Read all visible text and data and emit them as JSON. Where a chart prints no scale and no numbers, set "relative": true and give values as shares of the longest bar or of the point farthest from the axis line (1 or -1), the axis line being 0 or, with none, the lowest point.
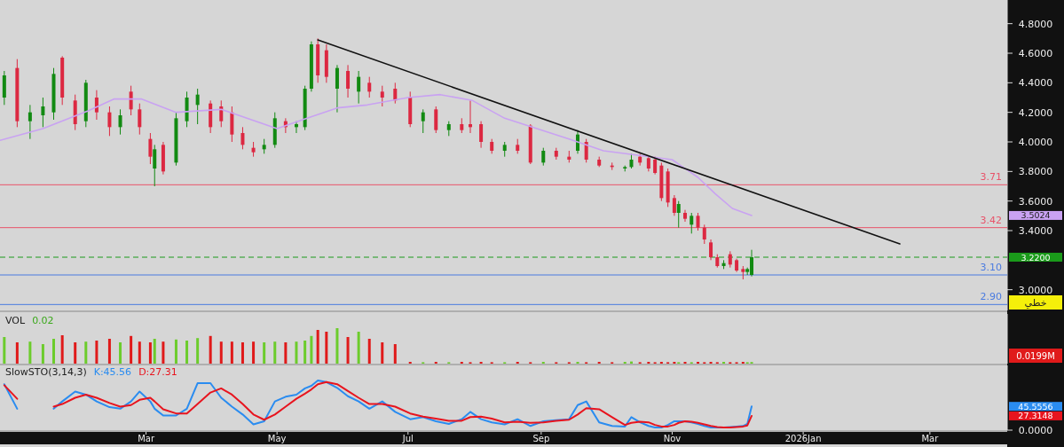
{
  "chart_data": [
    {
      "type": "candlestick",
      "tick_labels": "y",
      "xlim": [
        "2024-12-23",
        "2026-04-06"
      ],
      "ylim": [
        2.86,
        4.96
      ],
      "yticks": [
        {
          "value": 3.0,
          "label": "3.0000"
        },
        {
          "value": 3.4,
          "label": "3.4000"
        },
        {
          "value": 3.5024,
          "label": "3.5024"
        },
        {
          "value": 3.6,
          "label": "3.6000"
        },
        {
          "value": 3.8,
          "label": "3.8000"
        },
        {
          "value": 4.0,
          "label": "4.0000"
        },
        {
          "value": 4.2,
          "label": "4.2000"
        },
        {
          "value": 4.4,
          "label": "4.4000"
        },
        {
          "value": 4.6,
          "label": "4.6000"
        },
        {
          "value": 4.8,
          "label": "4.8000"
        }
      ],
      "x": [
        "2024-12-25",
        "2024-12-31",
        "2025-01-06",
        "2025-01-12",
        "2025-01-17",
        "2025-01-21",
        "2025-01-27",
        "2025-02-01",
        "2025-02-06",
        "2025-02-12",
        "2025-02-17",
        "2025-02-22",
        "2025-02-26",
        "2025-03-03",
        "2025-03-05",
        "2025-03-09",
        "2025-03-15",
        "2025-03-20",
        "2025-03-25",
        "2025-03-31",
        "2025-04-05",
        "2025-04-10",
        "2025-04-15",
        "2025-04-20",
        "2025-04-25",
        "2025-04-30",
        "2025-05-05",
        "2025-05-10",
        "2025-05-14",
        "2025-05-17",
        "2025-05-20",
        "2025-05-24",
        "2025-05-29",
        "2025-06-03",
        "2025-06-08",
        "2025-06-13",
        "2025-06-19",
        "2025-06-25",
        "2025-07-02",
        "2025-07-08",
        "2025-07-14",
        "2025-07-20",
        "2025-07-26",
        "2025-07-30",
        "2025-08-04",
        "2025-08-09",
        "2025-08-15",
        "2025-08-21",
        "2025-08-27",
        "2025-09-02",
        "2025-09-08",
        "2025-09-14",
        "2025-09-18",
        "2025-09-22",
        "2025-09-28",
        "2025-10-04",
        "2025-10-10",
        "2025-10-13",
        "2025-10-17",
        "2025-10-21",
        "2025-10-24",
        "2025-10-27",
        "2025-10-30",
        "2025-11-02",
        "2025-11-04",
        "2025-11-07",
        "2025-11-10",
        "2025-11-13",
        "2025-11-16",
        "2025-11-19",
        "2025-11-22",
        "2025-11-25",
        "2025-11-28",
        "2025-12-01",
        "2025-12-04",
        "2025-12-06",
        "2025-12-08"
      ],
      "ohlc": [
        [
          4.3,
          4.48,
          4.25,
          4.45
        ],
        [
          4.5,
          4.56,
          4.1,
          4.14
        ],
        [
          4.14,
          4.25,
          4.02,
          4.2
        ],
        [
          4.18,
          4.3,
          4.1,
          4.24
        ],
        [
          4.2,
          4.5,
          4.15,
          4.46
        ],
        [
          4.57,
          4.58,
          4.25,
          4.3
        ],
        [
          4.28,
          4.32,
          4.08,
          4.12
        ],
        [
          4.14,
          4.42,
          4.1,
          4.4
        ],
        [
          4.3,
          4.35,
          4.15,
          4.2
        ],
        [
          4.2,
          4.24,
          4.04,
          4.1
        ],
        [
          4.1,
          4.22,
          4.05,
          4.18
        ],
        [
          4.34,
          4.38,
          4.18,
          4.22
        ],
        [
          4.22,
          4.26,
          4.05,
          4.1
        ],
        [
          4.02,
          4.06,
          3.85,
          3.9
        ],
        [
          3.82,
          3.98,
          3.7,
          3.95
        ],
        [
          3.98,
          4.0,
          3.78,
          3.8
        ],
        [
          3.86,
          4.2,
          3.84,
          4.16
        ],
        [
          4.14,
          4.34,
          4.1,
          4.3
        ],
        [
          4.25,
          4.36,
          4.12,
          4.32
        ],
        [
          4.26,
          4.28,
          4.06,
          4.1
        ],
        [
          4.24,
          4.28,
          4.1,
          4.14
        ],
        [
          4.2,
          4.24,
          4.0,
          4.05
        ],
        [
          4.06,
          4.1,
          3.95,
          3.98
        ],
        [
          3.96,
          4.0,
          3.9,
          3.93
        ],
        [
          3.95,
          4.02,
          3.92,
          3.98
        ],
        [
          3.98,
          4.2,
          3.96,
          4.16
        ],
        [
          4.14,
          4.16,
          4.06,
          4.1
        ],
        [
          4.1,
          4.14,
          4.06,
          4.12
        ],
        [
          4.1,
          4.38,
          4.08,
          4.36
        ],
        [
          4.36,
          4.68,
          4.34,
          4.66
        ],
        [
          4.66,
          4.7,
          4.4,
          4.45
        ],
        [
          4.62,
          4.66,
          4.4,
          4.44
        ],
        [
          4.36,
          4.52,
          4.2,
          4.5
        ],
        [
          4.48,
          4.52,
          4.3,
          4.36
        ],
        [
          4.34,
          4.48,
          4.26,
          4.44
        ],
        [
          4.4,
          4.44,
          4.3,
          4.34
        ],
        [
          4.34,
          4.38,
          4.24,
          4.3
        ],
        [
          4.36,
          4.4,
          4.26,
          4.28
        ],
        [
          4.3,
          4.34,
          4.1,
          4.12
        ],
        [
          4.14,
          4.22,
          4.06,
          4.2
        ],
        [
          4.22,
          4.24,
          4.06,
          4.08
        ],
        [
          4.08,
          4.14,
          4.04,
          4.12
        ],
        [
          4.12,
          4.16,
          4.06,
          4.08
        ],
        [
          4.12,
          4.28,
          4.06,
          4.1
        ],
        [
          4.12,
          4.14,
          3.96,
          4.0
        ],
        [
          4.0,
          4.02,
          3.92,
          3.94
        ],
        [
          3.94,
          4.0,
          3.9,
          3.98
        ],
        [
          3.98,
          4.02,
          3.92,
          3.94
        ],
        [
          4.11,
          4.12,
          3.85,
          3.86
        ],
        [
          3.86,
          3.96,
          3.84,
          3.94
        ],
        [
          3.94,
          3.96,
          3.88,
          3.9
        ],
        [
          3.9,
          3.94,
          3.86,
          3.88
        ],
        [
          3.94,
          4.08,
          3.92,
          4.05
        ],
        [
          4.0,
          4.02,
          3.86,
          3.88
        ],
        [
          3.88,
          3.9,
          3.83,
          3.84
        ],
        [
          3.84,
          3.86,
          3.81,
          3.83
        ],
        [
          3.82,
          3.84,
          3.8,
          3.83
        ],
        [
          3.83,
          3.92,
          3.82,
          3.88
        ],
        [
          3.9,
          3.92,
          3.84,
          3.86
        ],
        [
          3.89,
          3.9,
          3.8,
          3.82
        ],
        [
          3.88,
          3.9,
          3.78,
          3.79
        ],
        [
          3.84,
          3.86,
          3.6,
          3.62
        ],
        [
          3.8,
          3.82,
          3.56,
          3.59
        ],
        [
          3.62,
          3.64,
          3.5,
          3.52
        ],
        [
          3.52,
          3.6,
          3.42,
          3.58
        ],
        [
          3.52,
          3.54,
          3.46,
          3.48
        ],
        [
          3.44,
          3.52,
          3.38,
          3.5
        ],
        [
          3.5,
          3.52,
          3.4,
          3.42
        ],
        [
          3.42,
          3.44,
          3.31,
          3.34
        ],
        [
          3.32,
          3.34,
          3.2,
          3.22
        ],
        [
          3.22,
          3.24,
          3.15,
          3.16
        ],
        [
          3.16,
          3.2,
          3.14,
          3.18
        ],
        [
          3.24,
          3.26,
          3.15,
          3.17
        ],
        [
          3.2,
          3.21,
          3.12,
          3.13
        ],
        [
          3.14,
          3.16,
          3.07,
          3.12
        ],
        [
          3.12,
          3.15,
          3.1,
          3.14
        ],
        [
          3.1,
          3.27,
          3.09,
          3.22
        ]
      ],
      "colors": [
        "#128a12",
        "#dc2841",
        "#128a12",
        "#128a12",
        "#128a12",
        "#dc2841",
        "#dc2841",
        "#128a12",
        "#dc2841",
        "#dc2841",
        "#128a12",
        "#dc2841",
        "#dc2841",
        "#dc2841",
        "#128a12",
        "#dc2841",
        "#128a12",
        "#128a12",
        "#128a12",
        "#dc2841",
        "#dc2841",
        "#dc2841",
        "#dc2841",
        "#dc2841",
        "#128a12",
        "#128a12",
        "#dc2841",
        "#128a12",
        "#128a12",
        "#128a12",
        "#dc2841",
        "#dc2841",
        "#128a12",
        "#dc2841",
        "#128a12",
        "#dc2841",
        "#dc2841",
        "#dc2841",
        "#dc2841",
        "#128a12",
        "#dc2841",
        "#128a12",
        "#dc2841",
        "#dc2841",
        "#dc2841",
        "#dc2841",
        "#128a12",
        "#dc2841",
        "#dc2841",
        "#128a12",
        "#dc2841",
        "#dc2841",
        "#128a12",
        "#dc2841",
        "#dc2841",
        "#dc2841",
        "#128a12",
        "#128a12",
        "#dc2841",
        "#dc2841",
        "#dc2841",
        "#dc2841",
        "#dc2841",
        "#dc2841",
        "#128a12",
        "#dc2841",
        "#128a12",
        "#dc2841",
        "#dc2841",
        "#dc2841",
        "#dc2841",
        "#128a12",
        "#dc2841",
        "#dc2841",
        "#dc2841",
        "#128a12",
        "#128a12"
      ],
      "series": [
        {
          "type": "line",
          "color": "#c9a2f2",
          "x": [
            "2024-12-23",
            "2025-01-12",
            "2025-02-02",
            "2025-02-14",
            "2025-02-27",
            "2025-03-15",
            "2025-04-05",
            "2025-05-01",
            "2025-05-15",
            "2025-05-29",
            "2025-06-12",
            "2025-07-01",
            "2025-07-16",
            "2025-07-31",
            "2025-08-15",
            "2025-08-30",
            "2025-09-14",
            "2025-09-30",
            "2025-10-16",
            "2025-11-01",
            "2025-11-13",
            "2025-11-21",
            "2025-11-29",
            "2025-12-08"
          ],
          "values": [
            4.01,
            4.09,
            4.21,
            4.29,
            4.29,
            4.2,
            4.22,
            4.09,
            4.16,
            4.23,
            4.25,
            4.3,
            4.32,
            4.28,
            4.16,
            4.09,
            4.02,
            3.94,
            3.91,
            3.88,
            3.76,
            3.65,
            3.55,
            3.5024
          ]
        },
        {
          "type": "line",
          "color": "#111111",
          "x": [
            "2025-05-20",
            "2026-02-15"
          ],
          "values": [
            4.69,
            3.31
          ]
        }
      ],
      "ref_lines": [
        {
          "axis": "y",
          "value": 3.71,
          "label": "3.71",
          "color": "#e8536a"
        },
        {
          "axis": "y",
          "value": 3.42,
          "label": "3.42",
          "color": "#e8536a"
        },
        {
          "axis": "y",
          "value": 3.22,
          "label": "3.2200",
          "color": "#1a9a1a",
          "line_style": "dashed"
        },
        {
          "axis": "y",
          "value": 3.1,
          "label": "3.10",
          "color": "#4a7be0"
        },
        {
          "axis": "y",
          "value": 2.9,
          "label": "2.90",
          "color": "#4a7be0"
        }
      ],
      "annotations": [
        "خطي"
      ]
    },
    {
      "type": "bar",
      "title": "VOL",
      "relative": true,
      "tick_labels": false,
      "xlim": [
        "2024-12-23",
        "2026-04-06"
      ],
      "x": [
        "2024-12-25",
        "2024-12-31",
        "2025-01-06",
        "2025-01-12",
        "2025-01-17",
        "2025-01-21",
        "2025-01-27",
        "2025-02-01",
        "2025-02-06",
        "2025-02-12",
        "2025-02-17",
        "2025-02-22",
        "2025-02-26",
        "2025-03-03",
        "2025-03-05",
        "2025-03-09",
        "2025-03-15",
        "2025-03-20",
        "2025-03-25",
        "2025-03-31",
        "2025-04-05",
        "2025-04-10",
        "2025-04-15",
        "2025-04-20",
        "2025-04-25",
        "2025-04-30",
        "2025-05-05",
        "2025-05-10",
        "2025-05-14",
        "2025-05-17",
        "2025-05-20",
        "2025-05-24",
        "2025-05-29",
        "2025-06-03",
        "2025-06-08",
        "2025-06-13",
        "2025-06-19",
        "2025-06-25",
        "2025-07-02",
        "2025-07-08",
        "2025-07-14",
        "2025-07-20",
        "2025-07-26",
        "2025-07-30",
        "2025-08-04",
        "2025-08-09",
        "2025-08-15",
        "2025-08-21",
        "2025-08-27",
        "2025-09-02",
        "2025-09-08",
        "2025-09-14",
        "2025-09-18",
        "2025-09-22",
        "2025-09-28",
        "2025-10-04",
        "2025-10-10",
        "2025-10-13",
        "2025-10-17",
        "2025-10-21",
        "2025-10-24",
        "2025-10-27",
        "2025-10-30",
        "2025-11-02",
        "2025-11-04",
        "2025-11-07",
        "2025-11-10",
        "2025-11-13",
        "2025-11-16",
        "2025-11-19",
        "2025-11-22",
        "2025-11-25",
        "2025-11-28",
        "2025-12-01",
        "2025-12-04",
        "2025-12-06",
        "2025-12-08"
      ],
      "values": [
        0.75,
        0.6,
        0.62,
        0.55,
        0.7,
        0.8,
        0.6,
        0.62,
        0.65,
        0.7,
        0.6,
        0.78,
        0.62,
        0.6,
        0.7,
        0.62,
        0.68,
        0.65,
        0.72,
        0.78,
        0.62,
        0.62,
        0.6,
        0.62,
        0.6,
        0.62,
        0.6,
        0.62,
        0.65,
        0.78,
        0.95,
        0.9,
        1.0,
        0.75,
        0.9,
        0.7,
        0.6,
        0.55,
        0.05,
        0.04,
        0.05,
        0.04,
        0.05,
        0.04,
        0.05,
        0.04,
        0.04,
        0.05,
        0.04,
        0.05,
        0.04,
        0.04,
        0.05,
        0.04,
        0.05,
        0.04,
        0.05,
        0.06,
        0.04,
        0.05,
        0.04,
        0.05,
        0.04,
        0.05,
        0.04,
        0.05,
        0.04,
        0.05,
        0.04,
        0.05,
        0.04,
        0.05,
        0.04,
        0.04,
        0.05,
        0.04,
        0.045
      ],
      "colors": [
        "#6ccc2c",
        "#e01a1a",
        "#6ccc2c",
        "#6ccc2c",
        "#6ccc2c",
        "#e01a1a",
        "#e01a1a",
        "#6ccc2c",
        "#e01a1a",
        "#e01a1a",
        "#6ccc2c",
        "#e01a1a",
        "#e01a1a",
        "#e01a1a",
        "#6ccc2c",
        "#e01a1a",
        "#6ccc2c",
        "#6ccc2c",
        "#6ccc2c",
        "#e01a1a",
        "#e01a1a",
        "#e01a1a",
        "#e01a1a",
        "#e01a1a",
        "#6ccc2c",
        "#6ccc2c",
        "#e01a1a",
        "#6ccc2c",
        "#6ccc2c",
        "#6ccc2c",
        "#e01a1a",
        "#e01a1a",
        "#6ccc2c",
        "#e01a1a",
        "#6ccc2c",
        "#e01a1a",
        "#e01a1a",
        "#e01a1a",
        "#e01a1a",
        "#6ccc2c",
        "#e01a1a",
        "#6ccc2c",
        "#e01a1a",
        "#e01a1a",
        "#e01a1a",
        "#e01a1a",
        "#6ccc2c",
        "#e01a1a",
        "#e01a1a",
        "#6ccc2c",
        "#e01a1a",
        "#e01a1a",
        "#6ccc2c",
        "#e01a1a",
        "#e01a1a",
        "#e01a1a",
        "#6ccc2c",
        "#6ccc2c",
        "#e01a1a",
        "#e01a1a",
        "#e01a1a",
        "#e01a1a",
        "#e01a1a",
        "#e01a1a",
        "#6ccc2c",
        "#e01a1a",
        "#6ccc2c",
        "#e01a1a",
        "#e01a1a",
        "#e01a1a",
        "#e01a1a",
        "#6ccc2c",
        "#e01a1a",
        "#e01a1a",
        "#e01a1a",
        "#6ccc2c",
        "#6ccc2c"
      ],
      "annotations": [
        "0.02",
        "0.0199M"
      ]
    },
    {
      "type": "line",
      "title": "SlowSTO(3,14,3)",
      "legend": "top left",
      "xlim": [
        "2024-12-23",
        "2026-04-06"
      ],
      "ylim": [
        0,
        124
      ],
      "yticks": [
        {
          "value": 0,
          "label": "0.0000"
        },
        {
          "value": 27.3148,
          "label": "27.3148"
        },
        {
          "value": 45.5556,
          "label": "45.5556"
        }
      ],
      "xticks": [
        {
          "value": "2025-03-01",
          "label": "Mar"
        },
        {
          "value": "2025-05-01",
          "label": "May"
        },
        {
          "value": "2025-07-01",
          "label": "Jul"
        },
        {
          "value": "2025-09-01",
          "label": "Sep"
        },
        {
          "value": "2025-11-01",
          "label": "Nov"
        },
        {
          "value": "2026-01-01",
          "label": "2026Jan"
        },
        {
          "value": "2026-03-01",
          "label": "Mar"
        }
      ],
      "x": [
        "2024-12-25",
        "2024-12-31",
        "2025-01-06",
        "2025-01-12",
        "2025-01-17",
        "2025-01-21",
        "2025-01-27",
        "2025-02-01",
        "2025-02-06",
        "2025-02-12",
        "2025-02-17",
        "2025-02-22",
        "2025-02-26",
        "2025-03-03",
        "2025-03-05",
        "2025-03-09",
        "2025-03-15",
        "2025-03-20",
        "2025-03-25",
        "2025-03-31",
        "2025-04-05",
        "2025-04-10",
        "2025-04-15",
        "2025-04-20",
        "2025-04-25",
        "2025-04-30",
        "2025-05-05",
        "2025-05-10",
        "2025-05-14",
        "2025-05-17",
        "2025-05-20",
        "2025-05-24",
        "2025-05-29",
        "2025-06-03",
        "2025-06-08",
        "2025-06-13",
        "2025-06-19",
        "2025-06-25",
        "2025-07-02",
        "2025-07-08",
        "2025-07-14",
        "2025-07-20",
        "2025-07-26",
        "2025-07-30",
        "2025-08-04",
        "2025-08-09",
        "2025-08-15",
        "2025-08-21",
        "2025-08-27",
        "2025-09-02",
        "2025-09-08",
        "2025-09-14",
        "2025-09-18",
        "2025-09-22",
        "2025-09-28",
        "2025-10-04",
        "2025-10-10",
        "2025-10-13",
        "2025-10-17",
        "2025-10-21",
        "2025-10-24",
        "2025-10-27",
        "2025-10-30",
        "2025-11-02",
        "2025-11-04",
        "2025-11-07",
        "2025-11-10",
        "2025-11-13",
        "2025-11-16",
        "2025-11-19",
        "2025-11-22",
        "2025-11-25",
        "2025-11-28",
        "2025-12-01",
        "2025-12-04",
        "2025-12-06",
        "2025-12-08"
      ],
      "series": [
        {
          "name": "K:45.56",
          "color": "#2a8cf0",
          "values": [
            88,
            41,
            null,
            null,
            41,
            55,
            74,
            68,
            55,
            44,
            41,
            55,
            74,
            55,
            41,
            28,
            28,
            41,
            90,
            90,
            62,
            45,
            30,
            11,
            17,
            55,
            64,
            68,
            80,
            85,
            95,
            92,
            81,
            65,
            55,
            41,
            55,
            35,
            21,
            25,
            17,
            12,
            21,
            35,
            21,
            15,
            11,
            21,
            8,
            17,
            19,
            21,
            48,
            55,
            15,
            8,
            7,
            25,
            15,
            8,
            5,
            5,
            10,
            17,
            17,
            17,
            15,
            12,
            8,
            5,
            5,
            5,
            6,
            7,
            8,
            12,
            45.5556
          ]
        },
        {
          "name": "D:27.31",
          "color": "#e8141e",
          "values": [
            86,
            60,
            null,
            null,
            45,
            50,
            62,
            68,
            62,
            52,
            45,
            48,
            58,
            62,
            55,
            40,
            32,
            32,
            50,
            72,
            80,
            68,
            50,
            30,
            20,
            30,
            45,
            60,
            70,
            78,
            88,
            92,
            88,
            75,
            62,
            50,
            50,
            45,
            32,
            26,
            22,
            18,
            18,
            25,
            26,
            22,
            15,
            16,
            14,
            15,
            18,
            20,
            30,
            42,
            40,
            25,
            10,
            14,
            16,
            15,
            10,
            7,
            7,
            10,
            14,
            17,
            16,
            14,
            11,
            8,
            6,
            5,
            5,
            6,
            7,
            9,
            27.3148
          ]
        }
      ]
    }
  ]
}
